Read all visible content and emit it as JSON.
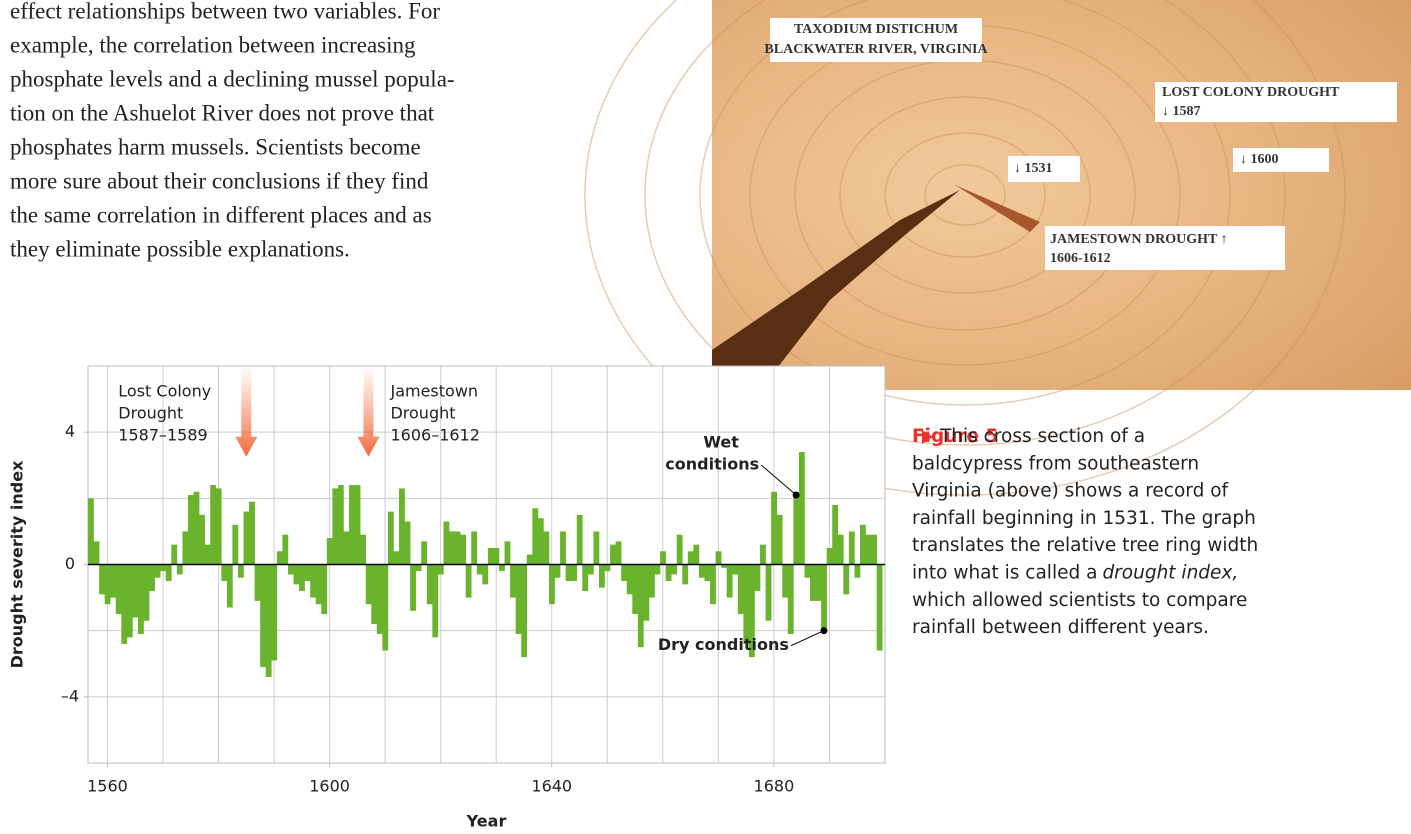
{
  "text": {
    "lines": [
      "effect relationships between two variables. For",
      "example, the correlation between increasing",
      "phosphate levels and a declining mussel popula-",
      "tion on the Ashuelot River does not prove that",
      "phosphates harm mussels. Scientists become",
      "more sure about their conclusions if they find",
      "the same correlation in different places and as",
      "they eliminate possible explanations."
    ]
  },
  "photo": {
    "species": "TAXODIUM DISTICHUM",
    "location": "BLACKWATER RIVER, VIRGINIA",
    "lost_colony": "LOST COLONY DROUGHT",
    "mark_1587": "↓ 1587",
    "mark_1531": "↓ 1531",
    "mark_1600": "↓ 1600",
    "jamestown": "JAMESTOWN DROUGHT ↑",
    "jamestown_years": "1606-1612"
  },
  "caption": {
    "label": "Figure 5",
    "lines": [
      "This cross section of a",
      "baldcypress from southeastern",
      "Virginia (above) shows a record of",
      "rainfall beginning in 1531. The graph",
      "translates the relative tree ring width",
      {
        "text": "into what is called a",
        "italic": "drought index,"
      },
      "which allowed scientists to compare",
      "rainfall between different years."
    ]
  },
  "chart_data": {
    "type": "bar",
    "x_label": "Year",
    "y_label": "Drought severity index",
    "color": "#6ab42d",
    "x": [
      1557,
      1558,
      1559,
      1560,
      1561,
      1562,
      1563,
      1564,
      1565,
      1566,
      1567,
      1568,
      1569,
      1570,
      1571,
      1572,
      1573,
      1574,
      1575,
      1576,
      1577,
      1578,
      1579,
      1580,
      1581,
      1582,
      1583,
      1584,
      1585,
      1586,
      1587,
      1588,
      1589,
      1590,
      1591,
      1592,
      1593,
      1594,
      1595,
      1596,
      1597,
      1598,
      1599,
      1600,
      1601,
      1602,
      1603,
      1604,
      1605,
      1606,
      1607,
      1608,
      1609,
      1610,
      1611,
      1612,
      1613,
      1614,
      1615,
      1616,
      1617,
      1618,
      1619,
      1620,
      1621,
      1622,
      1623,
      1624,
      1625,
      1626,
      1627,
      1628,
      1629,
      1630,
      1631,
      1632,
      1633,
      1634,
      1635,
      1636,
      1637,
      1638,
      1639,
      1640,
      1641,
      1642,
      1643,
      1644,
      1645,
      1646,
      1647,
      1648,
      1649,
      1650,
      1651,
      1652,
      1653,
      1654,
      1655,
      1656,
      1657,
      1658,
      1659,
      1660,
      1661,
      1662,
      1663,
      1664,
      1665,
      1666,
      1667,
      1668,
      1669,
      1670,
      1671,
      1672,
      1673,
      1674,
      1675,
      1676,
      1677,
      1678,
      1679,
      1680,
      1681,
      1682,
      1683,
      1684,
      1685,
      1686,
      1687,
      1688,
      1689,
      1690,
      1691,
      1692,
      1693,
      1694,
      1695,
      1696,
      1697,
      1698,
      1699
    ],
    "values": [
      2.0,
      0.7,
      -0.9,
      -1.2,
      -1.0,
      -1.5,
      -2.4,
      -2.2,
      -1.6,
      -2.1,
      -1.7,
      -0.8,
      -0.4,
      -0.2,
      -0.5,
      0.6,
      -0.3,
      1.0,
      2.1,
      2.2,
      1.5,
      0.6,
      2.4,
      2.3,
      -0.5,
      -1.3,
      1.2,
      -0.4,
      1.6,
      1.9,
      -1.1,
      -3.1,
      -3.4,
      -2.9,
      0.4,
      0.9,
      -0.3,
      -0.6,
      -0.8,
      -0.5,
      -1.0,
      -1.2,
      -1.5,
      0.8,
      2.3,
      2.4,
      1.0,
      2.4,
      2.4,
      0.9,
      -1.2,
      -1.8,
      -2.1,
      -2.6,
      1.6,
      0.4,
      2.3,
      1.3,
      -1.4,
      -0.2,
      0.7,
      -1.2,
      -2.2,
      -0.3,
      1.3,
      1.0,
      1.0,
      0.9,
      -1.0,
      1.0,
      -0.3,
      -0.6,
      0.5,
      0.5,
      -0.2,
      0.7,
      -1.0,
      -2.1,
      -2.8,
      0.3,
      1.7,
      1.4,
      1.0,
      -1.2,
      -0.4,
      1.0,
      -0.5,
      -0.5,
      1.5,
      -0.8,
      -0.3,
      1.0,
      -0.7,
      -0.2,
      0.6,
      0.7,
      -0.5,
      -0.9,
      -1.5,
      -2.5,
      -1.7,
      -1.0,
      -0.3,
      0.4,
      -0.5,
      -0.3,
      0.9,
      -0.6,
      0.4,
      0.6,
      -0.4,
      -0.5,
      -1.2,
      0.4,
      -0.1,
      -1.0,
      -0.3,
      -1.5,
      -2.4,
      -2.8,
      -0.8,
      0.6,
      -1.7,
      2.2,
      1.5,
      -1.0,
      -2.1,
      2.1,
      3.4,
      -0.4,
      -1.1,
      -1.1,
      -2.0,
      0.5,
      1.8,
      0.9,
      -0.9,
      1.0,
      -0.4,
      1.2,
      0.9,
      0.9,
      -2.6
    ],
    "xlim": [
      1556.5,
      1700
    ],
    "ylim": [
      -6,
      6
    ],
    "xticks": [
      1560,
      1600,
      1640,
      1680
    ],
    "yticks": [
      4,
      0,
      {
        "value": -4,
        "label": "–4"
      }
    ],
    "xgrid": [
      1560,
      1570,
      1580,
      1590,
      1600,
      1610,
      1620,
      1630,
      1640,
      1650,
      1660,
      1670,
      1680,
      1690
    ],
    "ygrid": [
      -4,
      -2,
      2,
      4
    ],
    "grid": true,
    "annotations": [
      {
        "lines": [
          "Lost Colony",
          "Drought",
          "1587–1589"
        ],
        "x": 1585
      },
      {
        "lines": [
          "Jamestown",
          "Drought",
          "1606–1612"
        ],
        "x": 1607
      }
    ],
    "callouts": [
      {
        "lines": [
          "Wet",
          "conditions"
        ],
        "x": 1684,
        "y": 2.1
      },
      {
        "lines": [
          "Dry conditions"
        ],
        "x": 1689,
        "y": -2.0
      }
    ]
  }
}
